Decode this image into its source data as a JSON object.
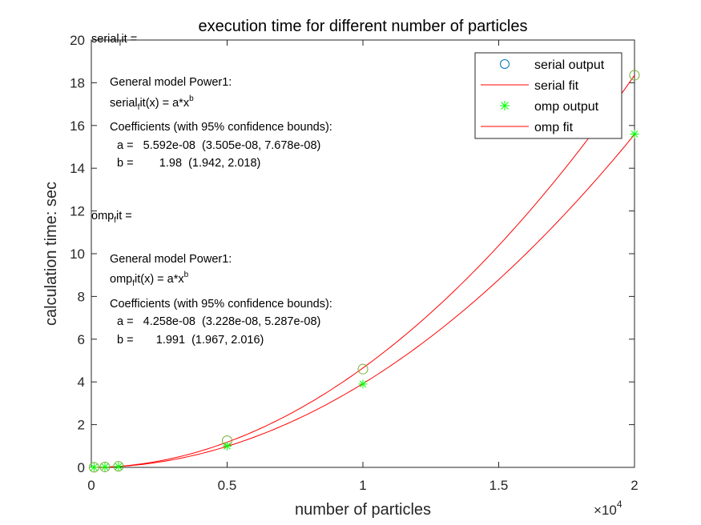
{
  "chart_data": {
    "type": "scatter",
    "title": "execution time for different number of particles",
    "xlabel": "number of particles",
    "ylabel": "calculation time: sec",
    "x_exponent_label": "×10",
    "x_exponent_power": "4",
    "xlim": [
      0,
      20000
    ],
    "ylim": [
      0,
      20
    ],
    "xticks": [
      0,
      5000,
      10000,
      15000,
      20000
    ],
    "xtick_labels": [
      "0",
      "0.5",
      "1",
      "1.5",
      "2"
    ],
    "yticks": [
      0,
      2,
      4,
      6,
      8,
      10,
      12,
      14,
      16,
      18,
      20
    ],
    "ytick_labels": [
      "0",
      "2",
      "4",
      "6",
      "8",
      "10",
      "12",
      "14",
      "16",
      "18",
      "20"
    ],
    "grid": false,
    "legend_position": "top-right",
    "colors": {
      "serial_marker": "#0072bd",
      "serial_marker_on_plot": "#77ac30",
      "fit_line": "#ff0000",
      "omp_marker": "#00ff00",
      "axis": "#262626",
      "text": "#000000"
    },
    "series": [
      {
        "name": "serial output",
        "marker": "circle",
        "points": [
          [
            100,
            0.005
          ],
          [
            500,
            0.02
          ],
          [
            1000,
            0.05
          ],
          [
            5000,
            1.25
          ],
          [
            10000,
            4.6
          ],
          [
            20000,
            18.35
          ]
        ]
      },
      {
        "name": "serial fit",
        "line": "fit",
        "model": "power1",
        "a": 5.592e-08,
        "b": 1.98
      },
      {
        "name": "omp output",
        "marker": "asterisk",
        "points": [
          [
            100,
            0.004
          ],
          [
            500,
            0.02
          ],
          [
            1000,
            0.04
          ],
          [
            5000,
            1.0
          ],
          [
            10000,
            3.9
          ],
          [
            20000,
            15.6
          ]
        ]
      },
      {
        "name": "omp fit",
        "line": "fit",
        "model": "power1",
        "a": 4.258e-08,
        "b": 1.991
      }
    ],
    "annotations": {
      "serial": {
        "header_base": "serial",
        "header_sub": "f",
        "header_rest": "it =",
        "model_line": "General model Power1:",
        "eq_base": "serial",
        "eq_sub": "f",
        "eq_rest": "it(x) = a*x",
        "eq_sup": "b",
        "coeff_line": "Coefficients (with 95% confidence bounds):",
        "a_line": "a =   5.592e-08  (3.505e-08, 7.678e-08)",
        "b_line": "b =        1.98  (1.942, 2.018)"
      },
      "omp": {
        "header_base": "omp",
        "header_sub": "f",
        "header_rest": "it =",
        "model_line": "General model Power1:",
        "eq_base": "omp",
        "eq_sub": "f",
        "eq_rest": "it(x) = a*x",
        "eq_sup": "b",
        "coeff_line": "Coefficients (with 95% confidence bounds):",
        "a_line": "a =   4.258e-08  (3.228e-08, 5.287e-08)",
        "b_line": "b =       1.991  (1.967, 2.016)"
      }
    }
  }
}
